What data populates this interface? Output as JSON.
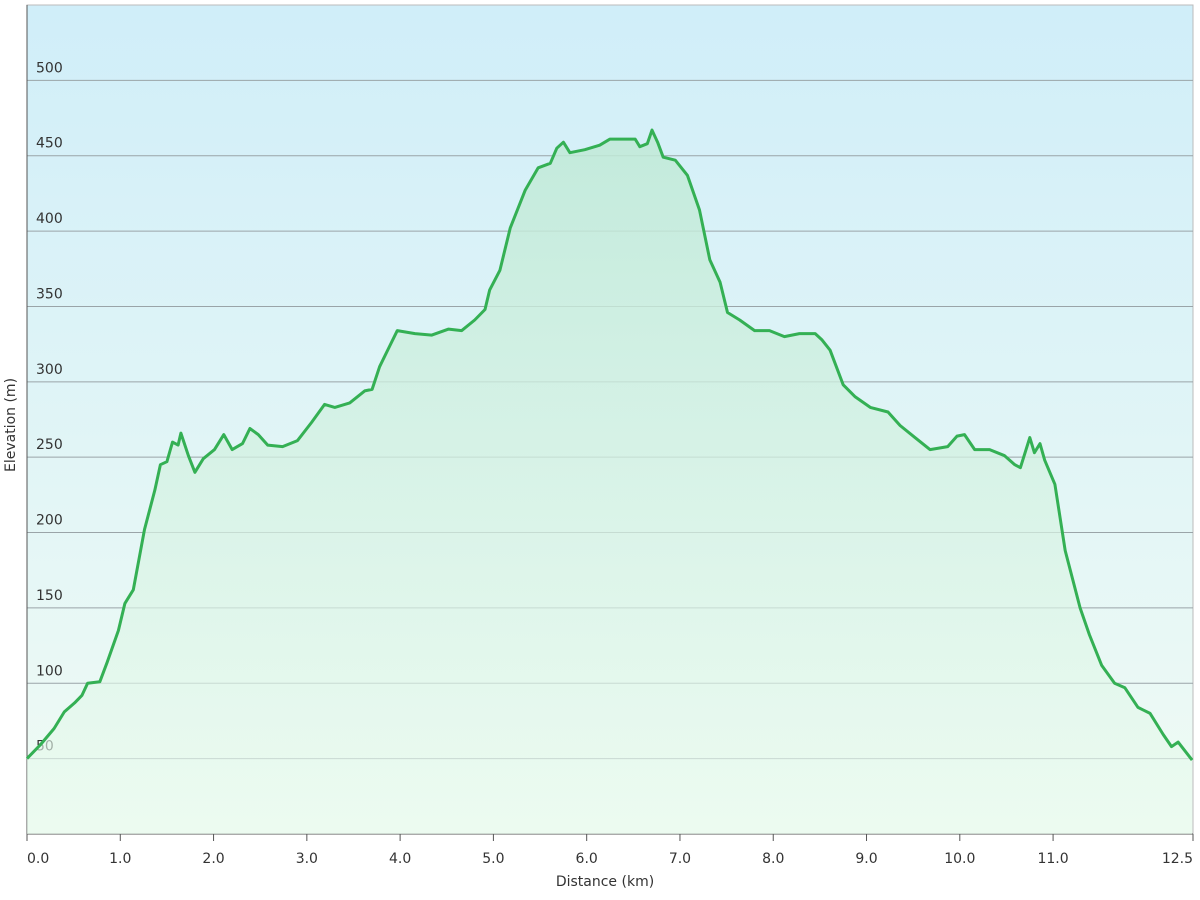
{
  "chart_data": {
    "type": "area",
    "x_label": "Distance  (km)",
    "y_label": "Elevation (m)",
    "color": "#34b054",
    "grid": true,
    "xlim": [
      0,
      12.5
    ],
    "ylim": [
      0,
      550
    ],
    "xticks": [
      {
        "value": 0,
        "label": "0.0"
      },
      {
        "value": 1,
        "label": "1.0"
      },
      {
        "value": 2,
        "label": "2.0"
      },
      {
        "value": 3,
        "label": "3.0"
      },
      {
        "value": 4,
        "label": "4.0"
      },
      {
        "value": 5,
        "label": "5.0"
      },
      {
        "value": 6,
        "label": "6.0"
      },
      {
        "value": 7,
        "label": "7.0"
      },
      {
        "value": 8,
        "label": "8.0"
      },
      {
        "value": 9,
        "label": "9.0"
      },
      {
        "value": 10,
        "label": "10.0"
      },
      {
        "value": 11,
        "label": "11.0"
      },
      12.5
    ],
    "yticks": [
      50,
      100,
      150,
      200,
      250,
      300,
      350,
      400,
      450,
      500
    ],
    "x": [
      0,
      0.14,
      0.29,
      0.4,
      0.51,
      0.59,
      0.65,
      0.78,
      0.86,
      0.98,
      1.05,
      1.14,
      1.26,
      1.37,
      1.43,
      1.5,
      1.56,
      1.62,
      1.65,
      1.73,
      1.8,
      1.89,
      2.01,
      2.11,
      2.2,
      2.31,
      2.39,
      2.48,
      2.58,
      2.74,
      2.9,
      3.05,
      3.19,
      3.3,
      3.46,
      3.62,
      3.7,
      3.78,
      3.89,
      3.97,
      4.16,
      4.34,
      4.52,
      4.66,
      4.8,
      4.91,
      4.96,
      5.07,
      5.18,
      5.34,
      5.48,
      5.61,
      5.68,
      5.75,
      5.82,
      5.98,
      6.14,
      6.25,
      6.41,
      6.52,
      6.57,
      6.65,
      6.7,
      6.76,
      6.82,
      6.95,
      7.08,
      7.21,
      7.32,
      7.43,
      7.51,
      7.64,
      7.8,
      7.96,
      8.12,
      8.28,
      8.45,
      8.52,
      8.61,
      8.75,
      8.88,
      9.04,
      9.23,
      9.36,
      9.52,
      9.68,
      9.87,
      9.97,
      10.05,
      10.16,
      10.32,
      10.48,
      10.59,
      10.65,
      10.75,
      10.8,
      10.86,
      10.91,
      11.02,
      11.13,
      11.29,
      11.39,
      11.52,
      11.66,
      11.77,
      11.91,
      12.04,
      12.18,
      12.27,
      12.34,
      12.49
    ],
    "values": [
      50,
      59,
      70,
      81,
      87,
      92,
      100,
      101,
      114,
      135,
      153,
      162,
      202,
      228,
      245,
      247,
      260,
      258,
      266,
      251,
      240,
      249,
      255,
      265,
      255,
      259,
      269,
      265,
      258,
      257,
      261,
      273,
      285,
      283,
      286,
      294,
      295,
      310,
      324,
      334,
      332,
      331,
      335,
      334,
      341,
      348,
      361,
      374,
      402,
      427,
      442,
      445,
      455,
      459,
      452,
      454,
      457,
      461,
      461,
      461,
      456,
      458,
      467,
      459,
      449,
      447,
      437,
      414,
      381,
      366,
      346,
      341,
      334,
      334,
      330,
      332,
      332,
      328,
      321,
      298,
      290,
      283,
      280,
      271,
      263,
      255,
      257,
      264,
      265,
      255,
      255,
      251,
      245,
      243,
      263,
      253,
      259,
      248,
      232,
      188,
      150,
      132,
      112,
      100,
      97,
      84,
      80,
      66,
      58,
      61,
      49
    ]
  }
}
